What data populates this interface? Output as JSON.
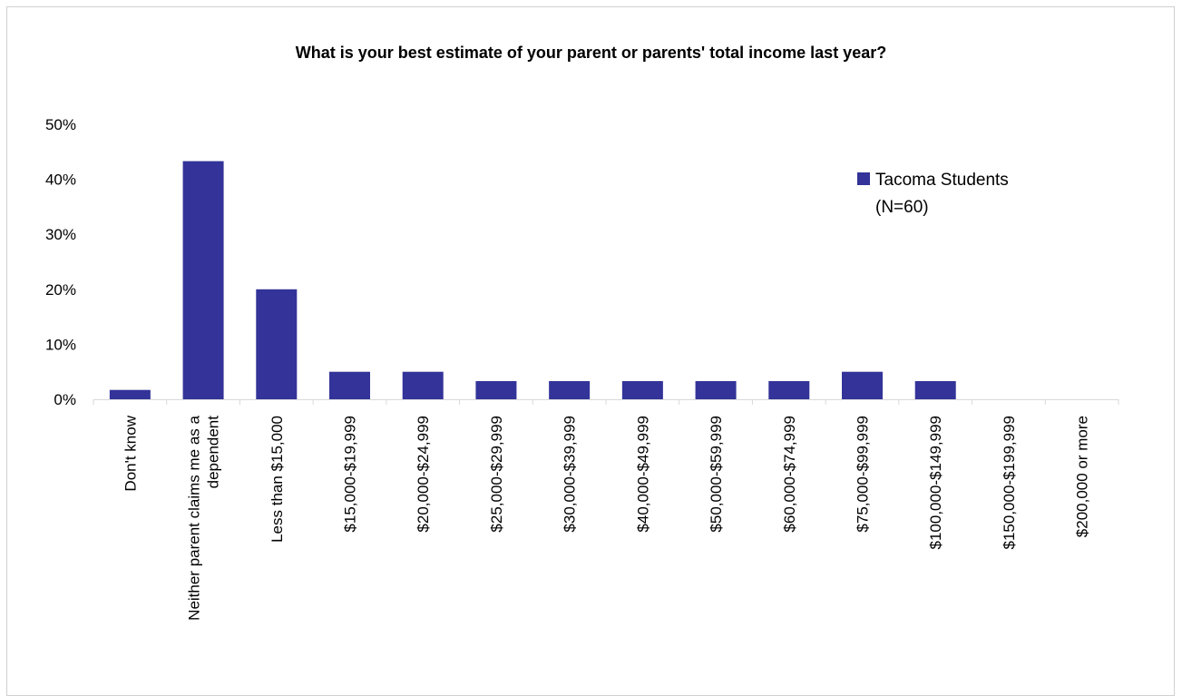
{
  "chart_data": {
    "type": "bar",
    "title": "What is your best estimate of your parent or parents' total income last year?",
    "categories": [
      [
        "Don't know"
      ],
      [
        "Neither parent claims me as a",
        "dependent"
      ],
      [
        "Less than $15,000"
      ],
      [
        "$15,000-$19,999"
      ],
      [
        "$20,000-$24,999"
      ],
      [
        "$25,000-$29,999"
      ],
      [
        "$30,000-$39,999"
      ],
      [
        "$40,000-$49,999"
      ],
      [
        "$50,000-$59,999"
      ],
      [
        "$60,000-$74,999"
      ],
      [
        "$75,000-$99,999"
      ],
      [
        "$100,000-$149,999"
      ],
      [
        "$150,000-$199,999"
      ],
      [
        "$200,000 or more"
      ]
    ],
    "series": [
      {
        "name": [
          "Tacoma Students",
          "(N=60)"
        ],
        "values": [
          1.7,
          43.3,
          20.0,
          5.0,
          5.0,
          3.3,
          3.3,
          3.3,
          3.3,
          3.3,
          5.0,
          3.3,
          0,
          0
        ],
        "color": "#333399"
      }
    ],
    "ylim": [
      0,
      50
    ],
    "yticks": [
      "0%",
      "10%",
      "20%",
      "30%",
      "40%",
      "50%"
    ],
    "ytick_values": [
      0,
      10,
      20,
      30,
      40,
      50
    ],
    "grid": false,
    "legend": "right"
  }
}
